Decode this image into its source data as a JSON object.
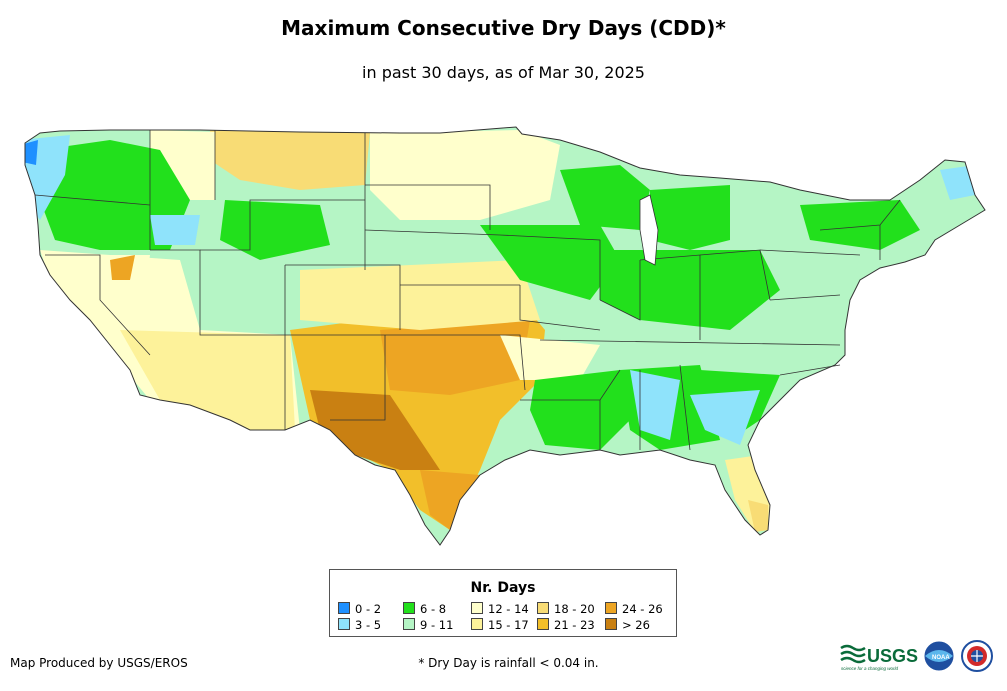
{
  "header": {
    "title": "Maximum Consecutive Dry Days (CDD)*",
    "subtitle": "in past 30 days, as of Mar 30, 2025"
  },
  "legend": {
    "title": "Nr. Days",
    "items": [
      {
        "label": "0 - 2",
        "color": "#1e90ff"
      },
      {
        "label": "3 - 5",
        "color": "#8fe3fb"
      },
      {
        "label": "6 - 8",
        "color": "#22e01c"
      },
      {
        "label": "9 - 11",
        "color": "#b5f5c5"
      },
      {
        "label": "12 - 14",
        "color": "#ffffcc"
      },
      {
        "label": "15 - 17",
        "color": "#fdf29a"
      },
      {
        "label": "18 - 20",
        "color": "#f8dc75"
      },
      {
        "label": "21 - 23",
        "color": "#f2bf2a"
      },
      {
        "label": "24 - 26",
        "color": "#eda523"
      },
      {
        "label": "> 26",
        "color": "#c98012"
      }
    ]
  },
  "footer": {
    "credit": "Map Produced by USGS/EROS",
    "note": "* Dry Day is rainfall < 0.04 in.",
    "logo_usgs": "USGS",
    "logo_usgs_tagline": "science for a changing world",
    "logo_noaa": "NOAA"
  }
}
